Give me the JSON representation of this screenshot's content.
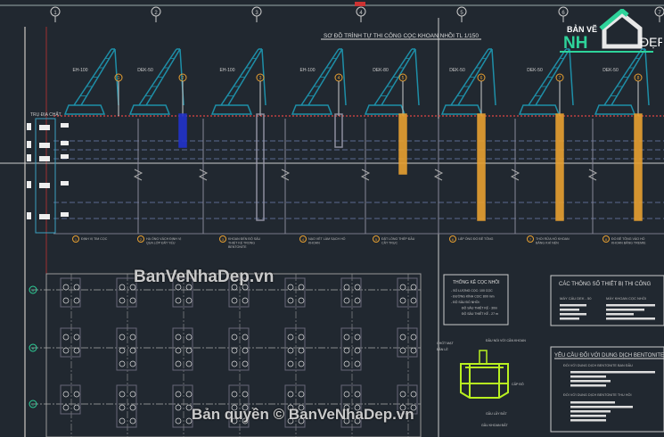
{
  "drawing": {
    "title": "SƠ ĐỒ TRÌNH TỰ THI CÔNG CỌC KHOAN NHỒI TL 1/150",
    "left_label": "TRỤ ĐỊA CHẤT",
    "cranes": [
      "EH-100",
      "DEK-50",
      "EH-100",
      "EH-100",
      "DEK-80",
      "DEK-50",
      "DEK-50",
      "DEK-50"
    ],
    "steps": [
      "1",
      "2",
      "3",
      "4",
      "5",
      "6",
      "7",
      "8"
    ],
    "step_captions": [
      "ĐỊNH VỊ TIM CỌC",
      "HẠ ỐNG VÁCH ĐỊNH VỊ QUA LỚP ĐẤT YẾU",
      "KHOAN ĐẾN ĐỘ SÂU THIẾT KẾ TRONG BENTONITE",
      "NẠO VÉT LÀM SẠCH HỐ KHOAN",
      "ĐẶT LỒNG THÉP ĐẦU CẮT TRỤC",
      "LẮP ỐNG ĐỔ BÊ TÔNG",
      "THỔI RỬA HỐ KHOAN BẰNG KHÍ NÉN",
      "ĐỔ BÊ TÔNG VÀO HỐ KHOAN BẰNG TREMIE"
    ],
    "axis_bubbles": [
      "1",
      "2",
      "3",
      "4",
      "5",
      "6",
      "7"
    ],
    "grid_rows": [
      "A",
      "B",
      "C",
      "D"
    ]
  },
  "stats_box": {
    "title": "THỐNG KÊ CỌC NHỒI",
    "lines": [
      "- SỐ LƯỢNG CỌC: 100 CỌC",
      "- ĐƯỜNG KÍNH CỌC: 800 mm",
      "- ĐỘ SÂU ĐỐ NHỒI:",
      "ĐỘ SÂU THIẾT KẾ - 30m",
      "ĐỘ SÂU THIẾT KẾ - 27 m"
    ]
  },
  "bucket_labels": [
    "CHỐT MẠT",
    "BẢN LỀ",
    "ĐẦU NỐI VỚI CẦN KHOAN",
    "CẤP ĐÔ",
    "GẦU LẤY ĐẤT",
    "GẦU KHOAN ĐẤT"
  ],
  "equipment_box": {
    "title": "CÁC THÔNG SỐ THIẾT BỊ THI CÔNG",
    "col1": "MÁY CẨU DEK - 50",
    "col2": "MÁY KHOAN CỌC NHỒI"
  },
  "bentonite_box": {
    "title": "YÊU CẦU ĐỐI VỚI DUNG DỊCH BENTONITE",
    "sub1": "ĐỐI VỚI DUNG DỊCH BENTONITE BAN ĐẦU",
    "sub2": "ĐỐI VỚI DUNG DỊCH BENTONITE THU HỒI"
  },
  "watermarks": {
    "top": "BanVeNhaDep.vn",
    "bottom": "Bản quyền © BanVeNhaDep.vn",
    "logo_top": "BẢN VẼ",
    "logo_nh": "NH",
    "logo_dep": "ĐẸP"
  },
  "colors": {
    "background": "#212830",
    "crane": "#1e8fa8",
    "pile_blue": "#2233cc",
    "concrete": "#e8a030",
    "bucket": "#b8f020",
    "brand_green": "#2ed39a"
  }
}
